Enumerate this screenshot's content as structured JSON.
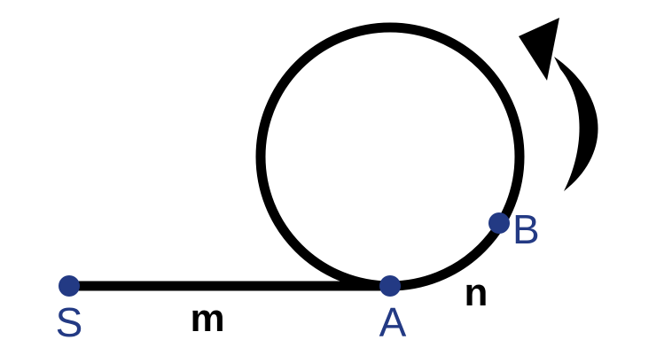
{
  "diagram": {
    "points": {
      "S": "S",
      "A": "A",
      "B": "B"
    },
    "segments": {
      "m": "m",
      "n": "n"
    },
    "colors": {
      "stroke": "#000000",
      "point": "#233a84",
      "point_label": "#233a84",
      "segment_label": "#000000",
      "background": "#ffffff"
    },
    "arrow_icon": "curved-arrow-counterclockwise-icon"
  }
}
